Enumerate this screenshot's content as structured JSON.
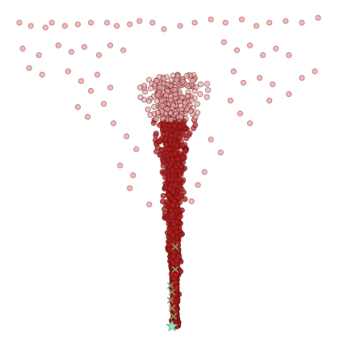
{
  "chart_data": {
    "type": "scatter",
    "title": "",
    "xlabel": "",
    "ylabel": "",
    "axes_visible": false,
    "grid": false,
    "legend": "none",
    "xlim": [
      -1.0,
      1.0
    ],
    "ylim": [
      -1.0,
      1.0
    ],
    "colors": {
      "points_fill": "#e9a3a3",
      "points_edge": "#a33333",
      "dense_fill": "#b01f1f",
      "dense_edge": "#5a1010",
      "markers_x": "#8a9a66",
      "markers_star": "#98e0c8"
    },
    "series": [
      {
        "marker": "circle",
        "points": [
          [
            -0.94,
            0.92
          ],
          [
            -0.87,
            0.9
          ],
          [
            -0.78,
            0.89
          ],
          [
            -0.74,
            0.92
          ],
          [
            -0.66,
            0.9
          ],
          [
            -0.58,
            0.91
          ],
          [
            -0.5,
            0.92
          ],
          [
            -0.4,
            0.92
          ],
          [
            -0.34,
            0.9
          ],
          [
            -0.26,
            0.91
          ],
          [
            -0.2,
            0.93
          ],
          [
            -0.12,
            0.92
          ],
          [
            -0.05,
            0.88
          ],
          [
            0.05,
            0.9
          ],
          [
            0.14,
            0.92
          ],
          [
            0.24,
            0.94
          ],
          [
            0.33,
            0.92
          ],
          [
            0.43,
            0.94
          ],
          [
            0.52,
            0.9
          ],
          [
            0.6,
            0.92
          ],
          [
            0.7,
            0.93
          ],
          [
            0.8,
            0.92
          ],
          [
            0.9,
            0.95
          ],
          [
            -0.92,
            0.76
          ],
          [
            -0.82,
            0.72
          ],
          [
            -0.7,
            0.78
          ],
          [
            -0.62,
            0.74
          ],
          [
            -0.54,
            0.77
          ],
          [
            -0.45,
            0.72
          ],
          [
            -0.38,
            0.78
          ],
          [
            -0.3,
            0.75
          ],
          [
            0.32,
            0.8
          ],
          [
            0.4,
            0.75
          ],
          [
            0.48,
            0.78
          ],
          [
            0.56,
            0.72
          ],
          [
            0.64,
            0.76
          ],
          [
            0.72,
            0.72
          ],
          [
            -0.88,
            0.64
          ],
          [
            -0.8,
            0.6
          ],
          [
            -0.64,
            0.62
          ],
          [
            -0.56,
            0.56
          ],
          [
            -0.46,
            0.6
          ],
          [
            -0.5,
            0.5
          ],
          [
            -0.38,
            0.52
          ],
          [
            0.38,
            0.62
          ],
          [
            0.44,
            0.55
          ],
          [
            0.54,
            0.58
          ],
          [
            0.62,
            0.54
          ],
          [
            0.8,
            0.58
          ],
          [
            0.88,
            0.62
          ],
          [
            0.72,
            0.48
          ],
          [
            0.6,
            0.44
          ],
          [
            -0.58,
            0.4
          ],
          [
            -0.52,
            0.34
          ],
          [
            -0.42,
            0.42
          ],
          [
            -0.36,
            0.3
          ],
          [
            0.36,
            0.44
          ],
          [
            0.42,
            0.36
          ],
          [
            0.48,
            0.3
          ],
          [
            -0.28,
            0.22
          ],
          [
            -0.22,
            0.14
          ],
          [
            0.24,
            0.2
          ],
          [
            0.3,
            0.12
          ],
          [
            -0.32,
            0.04
          ],
          [
            -0.24,
            -0.02
          ],
          [
            -0.26,
            -0.1
          ],
          [
            0.2,
            0.0
          ],
          [
            0.16,
            -0.08
          ],
          [
            -0.14,
            -0.2
          ],
          [
            0.12,
            -0.18
          ]
        ]
      },
      {
        "marker": "circle-dense",
        "count": 1500,
        "seed": 7
      },
      {
        "marker": "x",
        "points": [
          [
            0.02,
            -0.46
          ],
          [
            0.02,
            -0.6
          ],
          [
            -0.01,
            -0.7
          ],
          [
            0.0,
            -0.74
          ],
          [
            -0.01,
            -0.79
          ],
          [
            0.0,
            -0.84
          ],
          [
            0.01,
            -0.89
          ]
        ]
      },
      {
        "marker": "star",
        "points": [
          [
            0.0,
            -0.95
          ]
        ]
      }
    ]
  }
}
